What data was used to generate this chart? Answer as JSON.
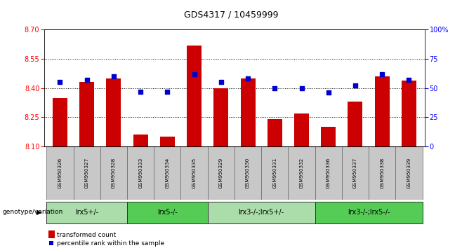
{
  "title": "GDS4317 / 10459999",
  "samples": [
    "GSM950326",
    "GSM950327",
    "GSM950328",
    "GSM950333",
    "GSM950334",
    "GSM950335",
    "GSM950329",
    "GSM950330",
    "GSM950331",
    "GSM950332",
    "GSM950336",
    "GSM950337",
    "GSM950338",
    "GSM950339"
  ],
  "bar_values": [
    8.35,
    8.43,
    8.45,
    8.16,
    8.15,
    8.62,
    8.4,
    8.45,
    8.24,
    8.27,
    8.2,
    8.33,
    8.46,
    8.44
  ],
  "dot_values": [
    55,
    57,
    60,
    47,
    47,
    62,
    55,
    58,
    50,
    50,
    46,
    52,
    62,
    57
  ],
  "bar_bottom": 8.1,
  "ylim_left": [
    8.1,
    8.7
  ],
  "ylim_right": [
    0,
    100
  ],
  "yticks_left": [
    8.1,
    8.25,
    8.4,
    8.55,
    8.7
  ],
  "yticks_right": [
    0,
    25,
    50,
    75,
    100
  ],
  "ytick_right_labels": [
    "0",
    "25",
    "50",
    "75",
    "100%"
  ],
  "hlines": [
    8.25,
    8.4,
    8.55
  ],
  "bar_color": "#cc0000",
  "dot_color": "#0000cc",
  "groups": [
    {
      "label": "lrx5+/-",
      "start": 0,
      "end": 3,
      "color": "#aaddaa"
    },
    {
      "label": "lrx5-/-",
      "start": 3,
      "end": 6,
      "color": "#55cc55"
    },
    {
      "label": "lrx3-/-;lrx5+/-",
      "start": 6,
      "end": 10,
      "color": "#aaddaa"
    },
    {
      "label": "lrx3-/-;lrx5-/-",
      "start": 10,
      "end": 14,
      "color": "#55cc55"
    }
  ],
  "genotype_label": "genotype/variation",
  "legend_bar_label": "transformed count",
  "legend_dot_label": "percentile rank within the sample",
  "sample_bg": "#c8c8c8",
  "title_fontsize": 9,
  "axis_fontsize": 7,
  "label_fontsize": 7
}
